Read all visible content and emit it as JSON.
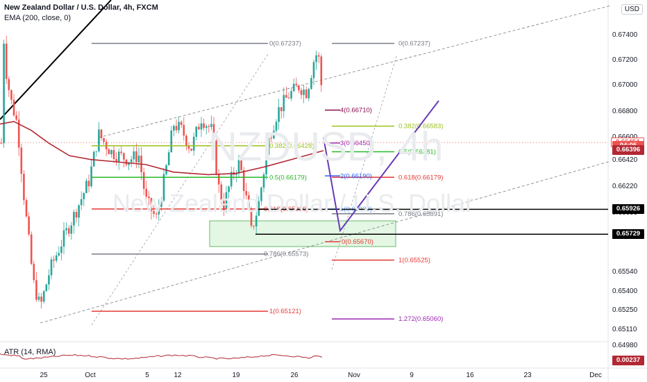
{
  "header": {
    "title": "New Zealand Dollar / U.S. Dollar, 4h, FXCM",
    "indicator": "EMA (200, close, 0)",
    "atr_label": "ATR (14, RMA)",
    "currency_button": "USD"
  },
  "watermark": {
    "symbol": "NZDUSD, 4h",
    "name": "New Zealand Dollar / U.S. Dollar"
  },
  "chart_data": {
    "type": "candlestick",
    "title": "New Zealand Dollar / U.S. Dollar, 4h, FXCM",
    "ylim": [
      0.6488,
      0.6758
    ],
    "y_ticks": [
      "0.67400",
      "0.67200",
      "0.67000",
      "0.66800",
      "0.66600",
      "0.66420",
      "0.66220",
      "0.66000",
      "0.65800",
      "0.65540",
      "0.65400",
      "0.65250",
      "0.65110",
      "0.64980"
    ],
    "x_ticks": [
      "25",
      "Oct",
      "5",
      "12",
      "19",
      "26",
      "Nov",
      "9",
      "16",
      "23",
      "Dec"
    ],
    "price_badges": [
      {
        "label": "0.66454",
        "value": 0.66454,
        "color": "#ef5350",
        "outline": true
      },
      {
        "label": "04:05",
        "value": 0.66425,
        "color": "#ef5350"
      },
      {
        "label": "0.66396",
        "value": 0.66396,
        "color": "#b22833"
      },
      {
        "label": "0.65926",
        "value": 0.65926,
        "color": "#000000"
      },
      {
        "label": "0.65729",
        "value": 0.65729,
        "color": "#000000"
      }
    ],
    "atr_value": "0.00237",
    "fib_levels": [
      {
        "label": "0(0.67237)",
        "value": 0.67237,
        "color": "#787b86",
        "group": "left"
      },
      {
        "label": "0.382(0.66428)",
        "value": 0.66428,
        "color": "#9bc11d",
        "group": "left"
      },
      {
        "label": "0.5(0.66179)",
        "value": 0.66179,
        "color": "#27b827",
        "group": "left"
      },
      {
        "label": "0.618(0.65929)",
        "value": 0.65929,
        "color": "#e53935",
        "group": "left"
      },
      {
        "label": "0.786(0.65573)",
        "value": 0.65573,
        "color": "#787b86",
        "group": "left"
      },
      {
        "label": "1(0.65121)",
        "value": 0.65121,
        "color": "#e53935",
        "group": "left"
      },
      {
        "label": "0(0.67237)",
        "value": 0.67237,
        "color": "#787b86",
        "group": "right"
      },
      {
        "label": "0.382(0.66583)",
        "value": 0.66583,
        "color": "#9bc11d",
        "group": "right"
      },
      {
        "label": "0.5(0.66381)",
        "value": 0.66381,
        "color": "#27b827",
        "group": "right"
      },
      {
        "label": "0.618(0.66179)",
        "value": 0.66179,
        "color": "#e53935",
        "group": "right"
      },
      {
        "label": "0.786(0.65891)",
        "value": 0.65891,
        "color": "#787b86",
        "group": "right"
      },
      {
        "label": "1(0.65525)",
        "value": 0.65525,
        "color": "#e53935",
        "group": "right"
      },
      {
        "label": "0(0.65670)",
        "value": 0.6567,
        "color": "#e53935",
        "group": "ext"
      },
      {
        "label": "1(0.65929)",
        "value": 0.65929,
        "color": "#5b9cf6",
        "group": "ext"
      },
      {
        "label": "2(0.66190)",
        "value": 0.6619,
        "color": "#2962ff",
        "group": "ext"
      },
      {
        "label": "3(0.66450)",
        "value": 0.6645,
        "color": "#9c27b0",
        "group": "ext"
      },
      {
        "label": "4(0.66710)",
        "value": 0.6671,
        "color": "#880e4f",
        "group": "ext"
      },
      {
        "label": "1.272(0.65060)",
        "value": 0.6506,
        "color": "#9c27b0",
        "group": "ext"
      }
    ]
  }
}
